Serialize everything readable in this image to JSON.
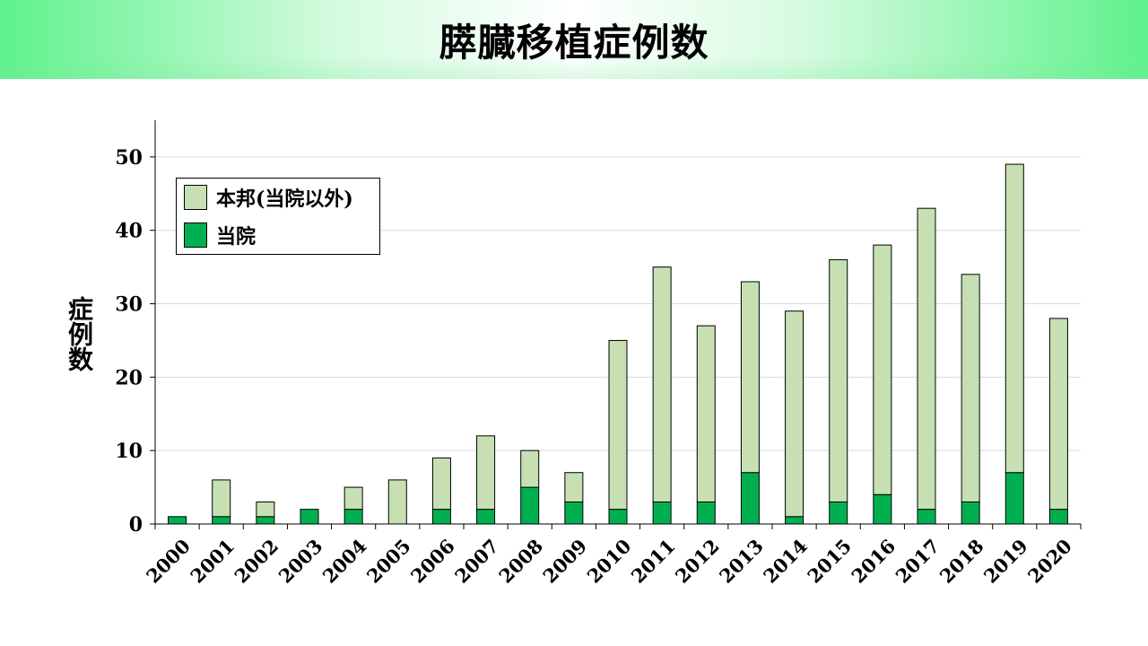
{
  "title": "膵臓移植症例数",
  "colors": {
    "other": "#c6e0b4",
    "ours": "#00b050",
    "banner": "#5ef28c"
  },
  "chart_data": {
    "type": "bar",
    "stacked": true,
    "categories": [
      "2000",
      "2001",
      "2002",
      "2003",
      "2004",
      "2005",
      "2006",
      "2007",
      "2008",
      "2009",
      "2010",
      "2011",
      "2012",
      "2013",
      "2014",
      "2015",
      "2016",
      "2017",
      "2018",
      "2019",
      "2020"
    ],
    "series": [
      {
        "name": "当院",
        "values": [
          1,
          1,
          1,
          2,
          2,
          0,
          2,
          2,
          5,
          3,
          2,
          3,
          3,
          7,
          1,
          3,
          4,
          2,
          3,
          7,
          2
        ]
      },
      {
        "name": "本邦(当院以外)",
        "values": [
          0,
          5,
          2,
          0,
          3,
          6,
          7,
          10,
          5,
          4,
          23,
          32,
          24,
          26,
          28,
          33,
          34,
          41,
          31,
          42,
          26
        ]
      }
    ],
    "ylabel": "症例数",
    "xlabel": "",
    "ylim": [
      0,
      55
    ],
    "yticks": [
      0,
      10,
      20,
      30,
      40,
      50
    ],
    "grid": true,
    "legend_position": "top-left",
    "legend_order": [
      "本邦(当院以外)",
      "当院"
    ]
  }
}
